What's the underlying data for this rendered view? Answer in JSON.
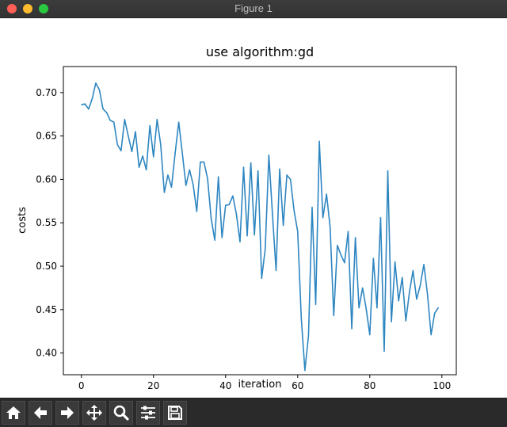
{
  "window": {
    "title": "Figure 1"
  },
  "toolbar": {
    "buttons": [
      {
        "name": "home-button",
        "icon": "home-icon"
      },
      {
        "name": "back-button",
        "icon": "arrow-left-icon"
      },
      {
        "name": "forward-button",
        "icon": "arrow-right-icon"
      },
      {
        "name": "pan-button",
        "icon": "move-icon"
      },
      {
        "name": "zoom-button",
        "icon": "magnifier-icon"
      },
      {
        "name": "configure-subplots-button",
        "icon": "sliders-icon"
      },
      {
        "name": "save-button",
        "icon": "floppy-disk-icon"
      }
    ]
  },
  "chart_data": {
    "type": "line",
    "title": "use algorithm:gd",
    "xlabel": "iteration",
    "ylabel": "costs",
    "xlim": [
      -5,
      104
    ],
    "ylim": [
      0.375,
      0.73
    ],
    "xticks": [
      "0",
      "20",
      "40",
      "60",
      "80",
      "100"
    ],
    "xtick_values": [
      0,
      20,
      40,
      60,
      80,
      100
    ],
    "yticks": [
      "0.40",
      "0.45",
      "0.50",
      "0.55",
      "0.60",
      "0.65",
      "0.70"
    ],
    "ytick_values": [
      0.4,
      0.45,
      0.5,
      0.55,
      0.6,
      0.65,
      0.7
    ],
    "grid": false,
    "line_color": "#2e86c1",
    "series": [
      {
        "values": [
          0.686,
          0.687,
          0.681,
          0.693,
          0.711,
          0.703,
          0.681,
          0.677,
          0.668,
          0.666,
          0.64,
          0.633,
          0.669,
          0.65,
          0.632,
          0.655,
          0.614,
          0.627,
          0.611,
          0.662,
          0.626,
          0.669,
          0.64,
          0.585,
          0.605,
          0.591,
          0.63,
          0.666,
          0.63,
          0.593,
          0.611,
          0.594,
          0.563,
          0.62,
          0.62,
          0.601,
          0.555,
          0.53,
          0.603,
          0.533,
          0.57,
          0.571,
          0.581,
          0.56,
          0.528,
          0.614,
          0.535,
          0.619,
          0.536,
          0.61,
          0.486,
          0.52,
          0.628,
          0.56,
          0.495,
          0.612,
          0.547,
          0.605,
          0.6,
          0.564,
          0.54,
          0.44,
          0.38,
          0.42,
          0.568,
          0.456,
          0.644,
          0.556,
          0.583,
          0.545,
          0.443,
          0.524,
          0.513,
          0.504,
          0.54,
          0.428,
          0.533,
          0.452,
          0.475,
          0.451,
          0.421,
          0.509,
          0.452,
          0.556,
          0.402,
          0.61,
          0.436,
          0.505,
          0.46,
          0.487,
          0.437,
          0.47,
          0.495,
          0.462,
          0.478,
          0.502,
          0.468,
          0.421,
          0.446,
          0.452
        ]
      }
    ]
  }
}
